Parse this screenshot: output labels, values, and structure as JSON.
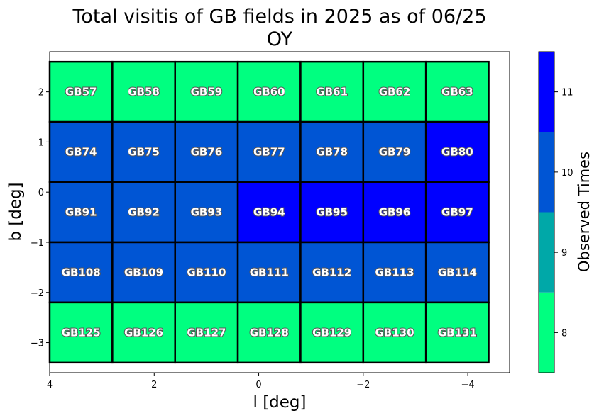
{
  "chart_data": {
    "type": "heatmap",
    "title": "Total visitis of GB fields in 2025 as of 06/25",
    "subtitle": "OY",
    "xlabel": "l [deg]",
    "ylabel": "b [deg]",
    "xlim": [
      4.0,
      -4.8
    ],
    "ylim": [
      -3.6,
      2.8
    ],
    "x_ticks": [
      4,
      2,
      0,
      -2,
      -4
    ],
    "x_tick_labels": [
      "4",
      "2",
      "0",
      "−2",
      "−4"
    ],
    "y_ticks": [
      2,
      1,
      0,
      -1,
      -2,
      -3
    ],
    "y_tick_labels": [
      "2",
      "1",
      "0",
      "−1",
      "−2",
      "−3"
    ],
    "x_edges": [
      4.0,
      2.8,
      1.6,
      0.4,
      -0.8,
      -2.0,
      -3.2,
      -4.4
    ],
    "y_edges": [
      2.6,
      1.4,
      0.2,
      -1.0,
      -2.2,
      -3.4
    ],
    "fields": [
      [
        "GB57",
        "GB58",
        "GB59",
        "GB60",
        "GB61",
        "GB62",
        "GB63"
      ],
      [
        "GB74",
        "GB75",
        "GB76",
        "GB77",
        "GB78",
        "GB79",
        "GB80"
      ],
      [
        "GB91",
        "GB92",
        "GB93",
        "GB94",
        "GB95",
        "GB96",
        "GB97"
      ],
      [
        "GB108",
        "GB109",
        "GB110",
        "GB111",
        "GB112",
        "GB113",
        "GB114"
      ],
      [
        "GB125",
        "GB126",
        "GB127",
        "GB128",
        "GB129",
        "GB130",
        "GB131"
      ]
    ],
    "values": [
      [
        8,
        8,
        8,
        8,
        8,
        8,
        8
      ],
      [
        10,
        10,
        10,
        10,
        10,
        10,
        11
      ],
      [
        10,
        10,
        10,
        11,
        11,
        11,
        11
      ],
      [
        10,
        10,
        10,
        10,
        10,
        10,
        10
      ],
      [
        8,
        8,
        8,
        8,
        8,
        8,
        8
      ]
    ],
    "colorbar": {
      "label": "Observed Times",
      "levels": [
        8,
        9,
        10,
        11
      ],
      "tick_labels": [
        "8",
        "9",
        "10",
        "11"
      ],
      "colors": {
        "8": "#00ff80",
        "9": "#00a8a8",
        "10": "#0055d4",
        "11": "#0000ff"
      }
    },
    "grid": false
  }
}
